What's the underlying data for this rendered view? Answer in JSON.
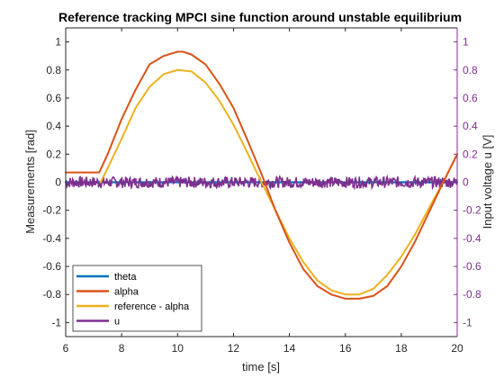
{
  "chart_data": {
    "type": "line",
    "title": "Reference tracking MPCI sine function around unstable equilibrium",
    "xlabel": "time [s]",
    "ylabel_left": "Measurements [rad]",
    "ylabel_right": "Input voltage u [V]",
    "xlim": [
      6,
      20
    ],
    "ylim_left": [
      -1.1,
      1.1
    ],
    "ylim_right": [
      -1.1,
      1.1
    ],
    "x_ticks": [
      "6",
      "8",
      "10",
      "12",
      "14",
      "16",
      "18",
      "20"
    ],
    "y_ticks_left": [
      "1",
      "0.8",
      "0.6",
      "0.4",
      "0.2",
      "0",
      "-0.2",
      "-0.4",
      "-0.6",
      "-0.8",
      "-1"
    ],
    "y_ticks_right": [
      "1",
      "0.8",
      "0.6",
      "0.4",
      "0.2",
      "0",
      "-0.2",
      "-0.4",
      "-0.6",
      "-0.8",
      "-1"
    ],
    "right_axis_color": "#7E2F8E",
    "legend_position": "bottom-left",
    "series": [
      {
        "name": "theta",
        "color": "#0072BD",
        "axis": "left",
        "x": [
          6,
          7,
          8,
          9,
          10,
          11,
          12,
          13,
          14,
          15,
          16,
          17,
          18,
          19,
          20
        ],
        "y": [
          0,
          0,
          0,
          0,
          0,
          0,
          0,
          0,
          0,
          0,
          0,
          0,
          0,
          0,
          0
        ]
      },
      {
        "name": "alpha",
        "color": "#D95319",
        "axis": "left",
        "x": [
          6,
          6.5,
          7,
          7.2,
          7.5,
          8,
          8.5,
          9,
          9.5,
          10,
          10.2,
          10.5,
          11,
          11.5,
          12,
          12.5,
          13,
          13.5,
          14,
          14.5,
          15,
          15.5,
          16,
          16.5,
          17,
          17.5,
          18,
          18.5,
          19,
          19.5,
          20
        ],
        "y": [
          0.07,
          0.07,
          0.07,
          0.07,
          0.2,
          0.45,
          0.66,
          0.84,
          0.9,
          0.93,
          0.93,
          0.91,
          0.84,
          0.7,
          0.53,
          0.3,
          0.06,
          -0.2,
          -0.43,
          -0.62,
          -0.74,
          -0.8,
          -0.83,
          -0.83,
          -0.81,
          -0.74,
          -0.6,
          -0.42,
          -0.21,
          0,
          0.2
        ]
      },
      {
        "name": "reference - alpha",
        "color": "#EDB120",
        "axis": "left",
        "x": [
          7.25,
          7.5,
          8,
          8.5,
          9,
          9.5,
          10,
          10.5,
          11,
          11.5,
          12,
          12.5,
          13,
          13.5,
          14,
          14.5,
          15,
          15.5,
          16,
          16.5,
          17,
          17.5,
          18,
          18.5,
          19,
          19.5,
          20
        ],
        "y": [
          0,
          0.1,
          0.31,
          0.53,
          0.68,
          0.77,
          0.8,
          0.79,
          0.71,
          0.58,
          0.41,
          0.21,
          0,
          -0.2,
          -0.4,
          -0.57,
          -0.7,
          -0.77,
          -0.8,
          -0.8,
          -0.76,
          -0.66,
          -0.53,
          -0.37,
          -0.18,
          0,
          0.2
        ]
      },
      {
        "name": "u",
        "color": "#7E2F8E",
        "axis": "right",
        "x_range": [
          6,
          20
        ],
        "y_mean": 0,
        "y_amplitude": 0.04
      }
    ]
  }
}
